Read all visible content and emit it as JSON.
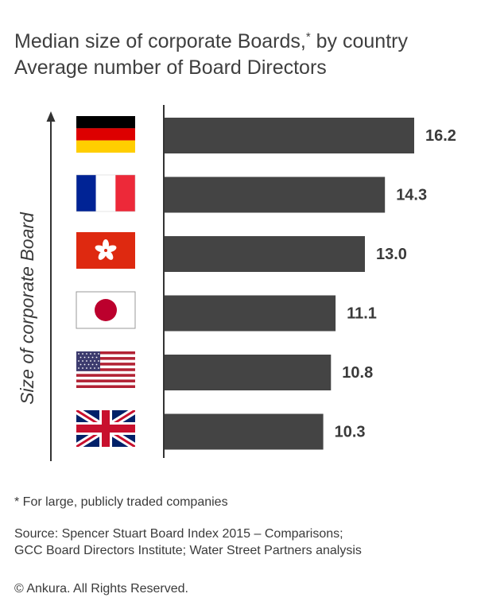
{
  "title_line1": "Median size of corporate Boards,",
  "title_sup": "*",
  "title_line1_rest": " by country",
  "title_line2": "Average number of Board Directors",
  "chart_data": {
    "type": "bar",
    "orientation": "horizontal",
    "ylabel": "Size of corporate Board",
    "categories": [
      "Germany",
      "France",
      "Hong Kong",
      "Japan",
      "United States",
      "United Kingdom"
    ],
    "values": [
      16.2,
      14.3,
      13.0,
      11.1,
      10.8,
      10.3
    ],
    "value_labels": [
      "16.2",
      "14.3",
      "13.0",
      "11.1",
      "10.8",
      "10.3"
    ],
    "bar_color": "#444444",
    "xlim": [
      0,
      16.2
    ],
    "grid": false,
    "legend": "none"
  },
  "footnote": "* For large, publicly traded companies",
  "source_line1": "Source: Spencer Stuart Board Index 2015 – Comparisons;",
  "source_line2": "GCC Board Directors Institute; Water Street Partners analysis",
  "copyright": "© Ankura. All Rights Reserved."
}
